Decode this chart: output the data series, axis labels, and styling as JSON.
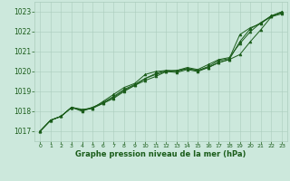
{
  "x": [
    0,
    1,
    2,
    3,
    4,
    5,
    6,
    7,
    8,
    9,
    10,
    11,
    12,
    13,
    14,
    15,
    16,
    17,
    18,
    19,
    20,
    21,
    22,
    23
  ],
  "line1": [
    1017.0,
    1017.55,
    1017.75,
    1018.2,
    1018.0,
    1018.2,
    1018.4,
    1018.65,
    1019.0,
    1019.3,
    1019.55,
    1019.75,
    1020.0,
    1019.95,
    1020.1,
    1020.0,
    1020.2,
    1020.45,
    1020.6,
    1020.85,
    1021.5,
    1022.1,
    1022.75,
    1022.9
  ],
  "line2": [
    1017.0,
    1017.55,
    1017.75,
    1018.2,
    1018.05,
    1018.2,
    1018.45,
    1018.75,
    1019.1,
    1019.35,
    1019.65,
    1019.9,
    1020.05,
    1020.0,
    1020.15,
    1020.05,
    1020.25,
    1020.55,
    1020.65,
    1021.85,
    1022.2,
    1022.4,
    1022.8,
    1022.95
  ],
  "line3": [
    1017.0,
    1017.55,
    1017.75,
    1018.2,
    1018.05,
    1018.15,
    1018.5,
    1018.85,
    1019.2,
    1019.4,
    1019.85,
    1020.0,
    1020.05,
    1020.05,
    1020.2,
    1020.1,
    1020.35,
    1020.6,
    1020.7,
    1021.4,
    1022.0,
    1022.45,
    1022.8,
    1023.0
  ],
  "line4": [
    1017.0,
    1017.55,
    1017.75,
    1018.2,
    1018.1,
    1018.15,
    1018.4,
    1018.7,
    1019.05,
    1019.3,
    1019.65,
    1019.85,
    1020.0,
    1020.05,
    1020.15,
    1020.05,
    1020.2,
    1020.45,
    1020.6,
    1021.5,
    1022.15,
    1022.45,
    1022.75,
    1023.0
  ],
  "ylim": [
    1016.5,
    1023.5
  ],
  "xlim": [
    -0.5,
    23.5
  ],
  "yticks": [
    1017,
    1018,
    1019,
    1020,
    1021,
    1022,
    1023
  ],
  "xticks": [
    0,
    1,
    2,
    3,
    4,
    5,
    6,
    7,
    8,
    9,
    10,
    11,
    12,
    13,
    14,
    15,
    16,
    17,
    18,
    19,
    20,
    21,
    22,
    23
  ],
  "line_color": "#1a5c1a",
  "marker_color": "#1a5c1a",
  "bg_color": "#cce8dc",
  "grid_color": "#aaccbc",
  "xlabel": "Graphe pression niveau de la mer (hPa)",
  "xlabel_color": "#1a5c1a",
  "tick_color": "#1a5c1a"
}
